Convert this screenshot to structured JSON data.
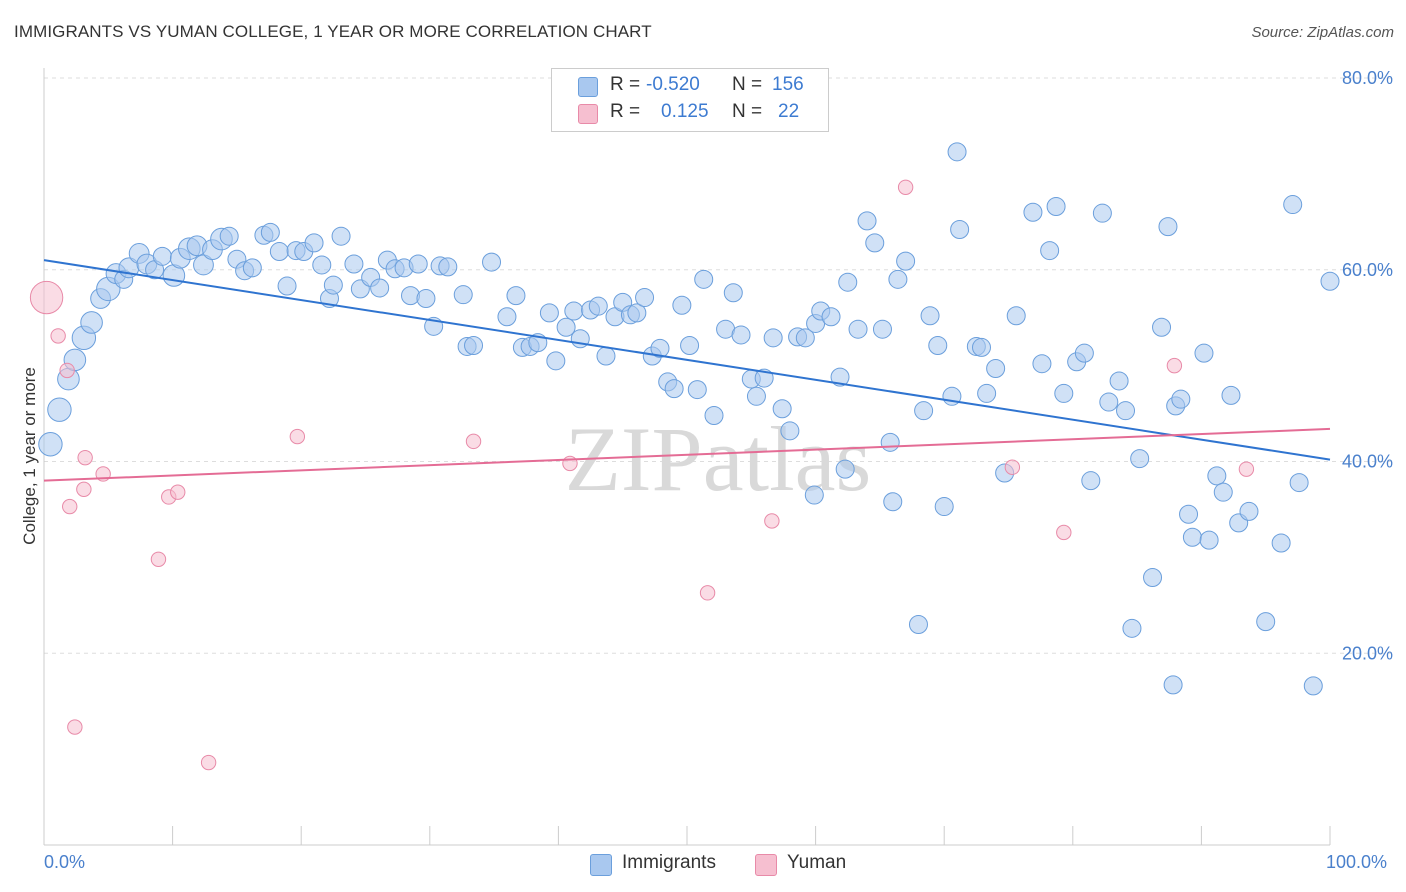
{
  "title": "IMMIGRANTS VS YUMAN COLLEGE, 1 YEAR OR MORE CORRELATION CHART",
  "source": "Source: ZipAtlas.com",
  "watermark": "ZIPatlas",
  "colors": {
    "immigrants_fill": "#a9c8ef",
    "immigrants_stroke": "#6b9fdc",
    "immigrants_line": "#2f74d0",
    "yuman_fill": "#f6bfd0",
    "yuman_stroke": "#e88aa8",
    "yuman_line": "#e46c95",
    "grid": "#dddddd",
    "tick_label": "#4a80cc"
  },
  "legend": {
    "r_label": "R =",
    "n_label": "N =",
    "rows": [
      {
        "series": "Immigrants",
        "r": "-0.520",
        "n": "156"
      },
      {
        "series": "Yuman",
        "r": "0.125",
        "n": "22"
      }
    ]
  },
  "bottom_legend": [
    "Immigrants",
    "Yuman"
  ],
  "chart_data": {
    "type": "scatter",
    "title": "IMMIGRANTS VS YUMAN COLLEGE, 1 YEAR OR MORE CORRELATION CHART",
    "xlabel": "",
    "ylabel": "College, 1 year or more",
    "xlim": [
      0,
      100
    ],
    "ylim": [
      0,
      80
    ],
    "x_tick_labels": [
      "0.0%",
      "100.0%"
    ],
    "y_ticks": [
      20,
      40,
      60,
      80
    ],
    "y_tick_labels": [
      "20.0%",
      "40.0%",
      "60.0%",
      "80.0%"
    ],
    "grid": true,
    "series": [
      {
        "name": "Immigrants",
        "trend": {
          "x": [
            0,
            100
          ],
          "y": [
            61.0,
            40.2
          ]
        },
        "points": [
          [
            0.5,
            41.8,
            13
          ],
          [
            1.2,
            45.4,
            13
          ],
          [
            1.9,
            48.6,
            12
          ],
          [
            2.4,
            50.6,
            12
          ],
          [
            3.1,
            52.9,
            13
          ],
          [
            3.7,
            54.5,
            12
          ],
          [
            4.4,
            57.0,
            11
          ],
          [
            5.0,
            58.0,
            13
          ],
          [
            5.6,
            59.6,
            11
          ],
          [
            6.2,
            59.0,
            10
          ],
          [
            6.6,
            60.2,
            11
          ],
          [
            7.4,
            61.7,
            11
          ],
          [
            8.0,
            60.6,
            11
          ],
          [
            8.6,
            60.0,
            10
          ],
          [
            9.2,
            61.4,
            10
          ],
          [
            10.1,
            59.4,
            12
          ],
          [
            10.6,
            61.2,
            11
          ],
          [
            11.3,
            62.2,
            12
          ],
          [
            11.9,
            62.5,
            11
          ],
          [
            12.4,
            60.5,
            11
          ],
          [
            13.1,
            62.1,
            11
          ],
          [
            13.8,
            63.2,
            12
          ],
          [
            14.4,
            63.5,
            10
          ],
          [
            15.0,
            61.1,
            10
          ],
          [
            15.6,
            59.9,
            10
          ],
          [
            16.2,
            60.2,
            10
          ],
          [
            17.1,
            63.6,
            10
          ],
          [
            17.6,
            63.9,
            10
          ],
          [
            18.3,
            61.9,
            10
          ],
          [
            18.9,
            58.3,
            10
          ],
          [
            19.6,
            62.0,
            10
          ],
          [
            20.2,
            61.9,
            10
          ],
          [
            21.0,
            62.8,
            10
          ],
          [
            21.6,
            60.5,
            10
          ],
          [
            22.2,
            57.0,
            10
          ],
          [
            22.5,
            58.4,
            10
          ],
          [
            23.1,
            63.5,
            10
          ],
          [
            24.1,
            60.6,
            10
          ],
          [
            24.6,
            58.0,
            10
          ],
          [
            25.4,
            59.2,
            10
          ],
          [
            26.1,
            58.1,
            10
          ],
          [
            26.7,
            61.0,
            10
          ],
          [
            27.3,
            60.1,
            10
          ],
          [
            28.0,
            60.2,
            10
          ],
          [
            28.5,
            57.3,
            10
          ],
          [
            29.1,
            60.6,
            10
          ],
          [
            29.7,
            57.0,
            10
          ],
          [
            30.3,
            54.1,
            10
          ],
          [
            30.8,
            60.4,
            10
          ],
          [
            31.4,
            60.3,
            10
          ],
          [
            32.6,
            57.4,
            10
          ],
          [
            32.9,
            52.0,
            10
          ],
          [
            33.4,
            52.1,
            10
          ],
          [
            34.8,
            60.8,
            10
          ],
          [
            36.0,
            55.1,
            10
          ],
          [
            36.7,
            57.3,
            10
          ],
          [
            37.2,
            51.9,
            10
          ],
          [
            37.8,
            52.0,
            10
          ],
          [
            38.4,
            52.4,
            10
          ],
          [
            39.3,
            55.5,
            10
          ],
          [
            39.8,
            50.5,
            10
          ],
          [
            40.6,
            54.0,
            10
          ],
          [
            41.2,
            55.7,
            10
          ],
          [
            41.7,
            52.8,
            10
          ],
          [
            42.5,
            55.8,
            10
          ],
          [
            43.1,
            56.2,
            10
          ],
          [
            43.7,
            51.0,
            10
          ],
          [
            44.4,
            55.1,
            10
          ],
          [
            45.0,
            56.6,
            10
          ],
          [
            45.6,
            55.3,
            10
          ],
          [
            46.1,
            55.5,
            10
          ],
          [
            46.7,
            57.1,
            10
          ],
          [
            47.3,
            51.0,
            10
          ],
          [
            47.9,
            51.8,
            10
          ],
          [
            48.5,
            48.3,
            10
          ],
          [
            49.0,
            47.6,
            10
          ],
          [
            49.6,
            56.3,
            10
          ],
          [
            50.2,
            52.1,
            10
          ],
          [
            50.8,
            47.5,
            10
          ],
          [
            51.3,
            59.0,
            10
          ],
          [
            52.1,
            44.8,
            10
          ],
          [
            53.0,
            53.8,
            10
          ],
          [
            53.6,
            57.6,
            10
          ],
          [
            54.2,
            53.2,
            10
          ],
          [
            55.0,
            48.6,
            10
          ],
          [
            55.4,
            46.8,
            10
          ],
          [
            56.0,
            48.7,
            10
          ],
          [
            56.7,
            52.9,
            10
          ],
          [
            57.4,
            45.5,
            10
          ],
          [
            58.0,
            43.2,
            10
          ],
          [
            58.6,
            53.0,
            10
          ],
          [
            59.2,
            52.9,
            10
          ],
          [
            60.0,
            54.4,
            10
          ],
          [
            60.4,
            55.7,
            10
          ],
          [
            61.2,
            55.1,
            10
          ],
          [
            61.9,
            48.8,
            10
          ],
          [
            62.5,
            58.7,
            10
          ],
          [
            63.3,
            53.8,
            10
          ],
          [
            64.0,
            65.1,
            10
          ],
          [
            64.6,
            62.8,
            10
          ],
          [
            65.2,
            53.8,
            10
          ],
          [
            65.8,
            42.0,
            10
          ],
          [
            66.4,
            59.0,
            10
          ],
          [
            67.0,
            60.9,
            10
          ],
          [
            68.4,
            45.3,
            10
          ],
          [
            68.9,
            55.2,
            10
          ],
          [
            69.5,
            52.1,
            10
          ],
          [
            70.0,
            35.3,
            10
          ],
          [
            70.6,
            46.8,
            10
          ],
          [
            71.2,
            64.2,
            10
          ],
          [
            72.5,
            52.0,
            10
          ],
          [
            72.9,
            51.9,
            10
          ],
          [
            73.3,
            47.1,
            10
          ],
          [
            74.0,
            49.7,
            10
          ],
          [
            74.7,
            38.8,
            10
          ],
          [
            75.6,
            55.2,
            10
          ],
          [
            76.9,
            66.0,
            10
          ],
          [
            77.6,
            50.2,
            10
          ],
          [
            78.2,
            62.0,
            10
          ],
          [
            78.7,
            66.6,
            10
          ],
          [
            79.3,
            47.1,
            10
          ],
          [
            80.3,
            50.4,
            10
          ],
          [
            80.9,
            51.3,
            10
          ],
          [
            81.4,
            38.0,
            10
          ],
          [
            82.3,
            65.9,
            10
          ],
          [
            82.8,
            46.2,
            10
          ],
          [
            83.6,
            48.4,
            10
          ],
          [
            84.1,
            45.3,
            10
          ],
          [
            84.6,
            22.6,
            10
          ],
          [
            85.2,
            40.3,
            10
          ],
          [
            86.2,
            27.9,
            10
          ],
          [
            86.9,
            54.0,
            10
          ],
          [
            87.4,
            64.5,
            10
          ],
          [
            88.0,
            45.8,
            10
          ],
          [
            89.3,
            32.1,
            10
          ],
          [
            90.2,
            51.3,
            10
          ],
          [
            90.6,
            31.8,
            10
          ],
          [
            91.2,
            38.5,
            10
          ],
          [
            91.7,
            36.8,
            10
          ],
          [
            92.3,
            46.9,
            10
          ],
          [
            92.9,
            33.6,
            10
          ],
          [
            93.7,
            34.8,
            10
          ],
          [
            95.0,
            23.3,
            10
          ],
          [
            96.2,
            31.5,
            10
          ],
          [
            97.1,
            66.8,
            10
          ],
          [
            97.6,
            37.8,
            10
          ],
          [
            98.7,
            16.6,
            10
          ],
          [
            100.0,
            58.8,
            10
          ],
          [
            87.8,
            16.7,
            10
          ],
          [
            88.4,
            46.5,
            10
          ],
          [
            89.0,
            34.5,
            10
          ],
          [
            71.0,
            72.3,
            10
          ],
          [
            59.9,
            36.5,
            10
          ],
          [
            62.3,
            39.2,
            10
          ],
          [
            66.0,
            35.8,
            10
          ],
          [
            68.0,
            23.0,
            10
          ]
        ]
      },
      {
        "name": "Yuman",
        "trend": {
          "x": [
            0,
            100
          ],
          "y": [
            38.0,
            43.4
          ]
        },
        "points": [
          [
            0.2,
            57.1,
            18
          ],
          [
            1.1,
            53.1,
            8
          ],
          [
            1.8,
            49.5,
            8
          ],
          [
            2.0,
            35.3,
            8
          ],
          [
            2.4,
            12.3,
            8
          ],
          [
            3.1,
            37.1,
            8
          ],
          [
            3.2,
            40.4,
            8
          ],
          [
            4.6,
            38.7,
            8
          ],
          [
            8.9,
            29.8,
            8
          ],
          [
            9.7,
            36.3,
            8
          ],
          [
            10.4,
            36.8,
            8
          ],
          [
            12.8,
            8.6,
            8
          ],
          [
            19.7,
            42.6,
            8
          ],
          [
            33.4,
            42.1,
            8
          ],
          [
            40.9,
            39.8,
            8
          ],
          [
            51.6,
            26.3,
            8
          ],
          [
            56.6,
            33.8,
            8
          ],
          [
            67.0,
            68.6,
            8
          ],
          [
            75.3,
            39.4,
            8
          ],
          [
            79.3,
            32.6,
            8
          ],
          [
            87.9,
            50.0,
            8
          ],
          [
            93.5,
            39.2,
            8
          ]
        ]
      }
    ]
  }
}
